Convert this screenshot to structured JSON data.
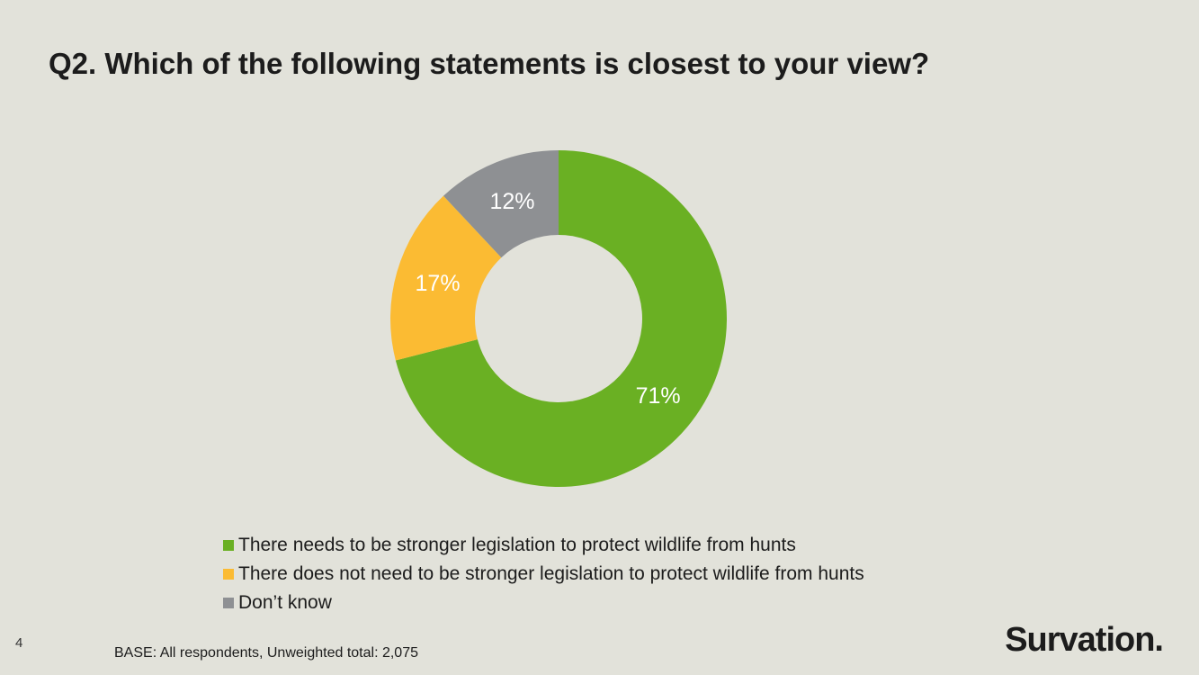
{
  "slide": {
    "title": "Q2. Which of the following statements is closest to your view?",
    "page_number": "4",
    "base_note": "BASE: All respondents, Unweighted total: 2,075",
    "logo_text": "Survation."
  },
  "chart_data": {
    "type": "pie",
    "donut": true,
    "title": "",
    "legend_position": "bottom",
    "series": [
      {
        "name": "There needs to be stronger legislation to protect wildlife from hunts",
        "value": 71,
        "label": "71%",
        "color": "#6ab023"
      },
      {
        "name": "There does not need to be stronger legislation to protect wildlife from hunts",
        "value": 17,
        "label": "17%",
        "color": "#fbbb33"
      },
      {
        "name": "Don’t know",
        "value": 12,
        "label": "12%",
        "color": "#8e9093"
      }
    ]
  }
}
